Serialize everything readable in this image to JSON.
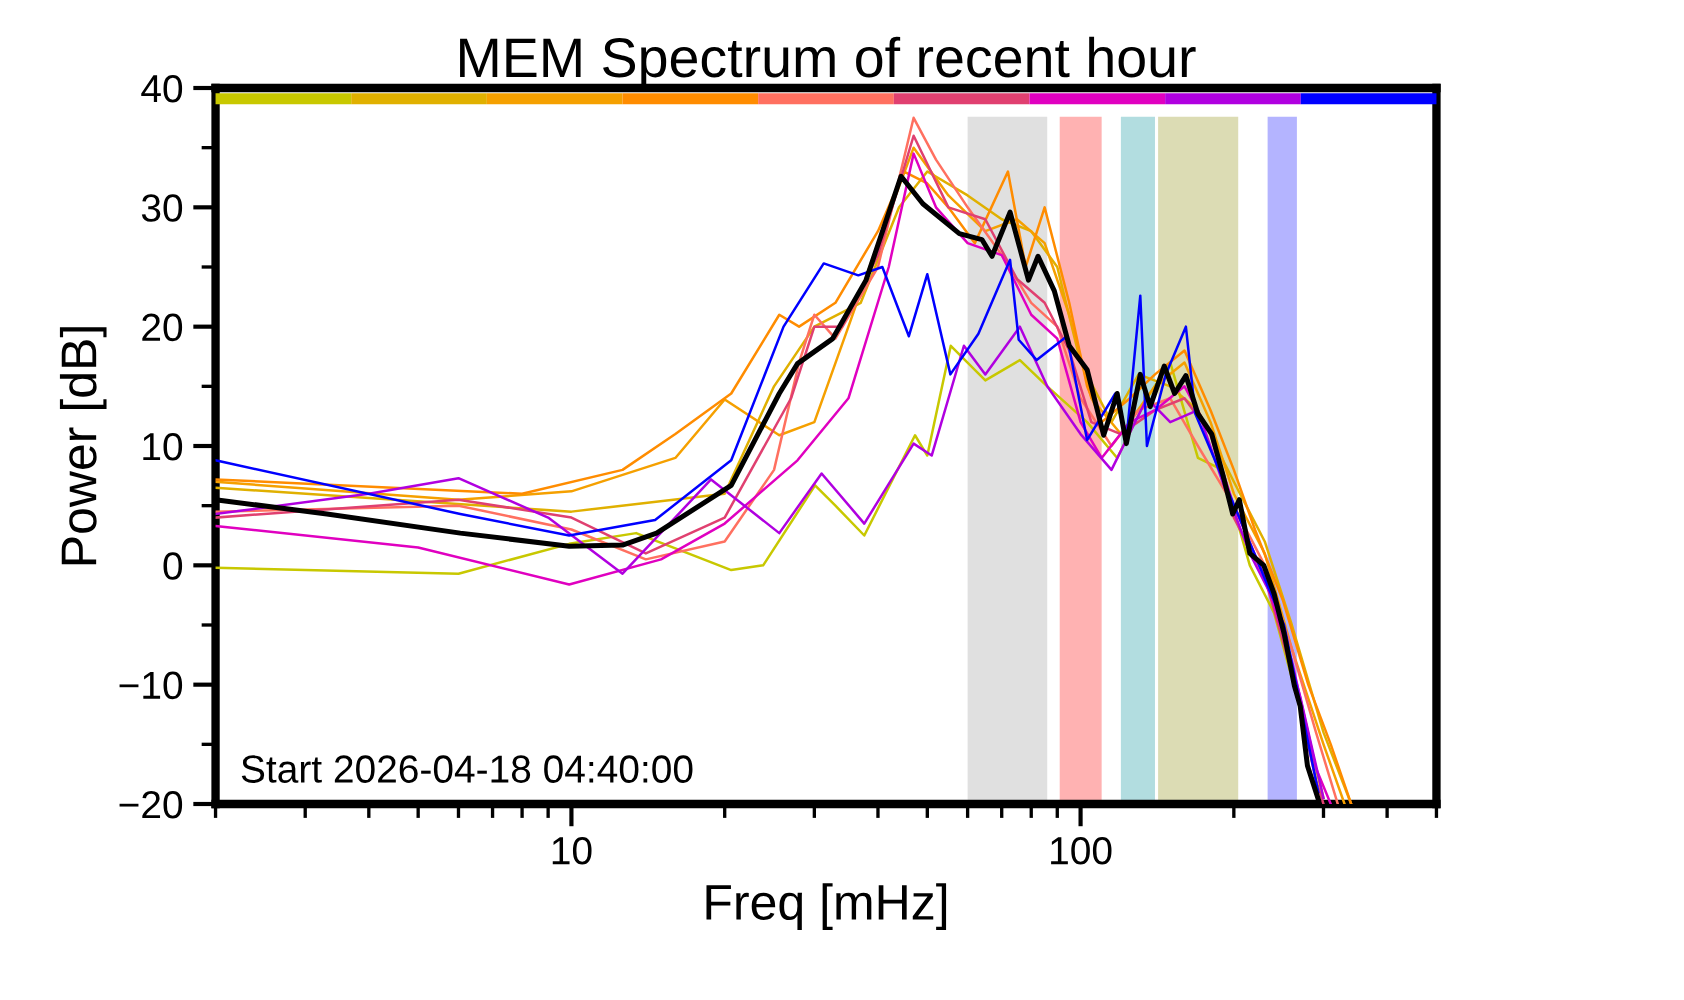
{
  "chart_data": {
    "type": "line",
    "title": "MEM Spectrum of recent hour",
    "xlabel": "Freq [mHz]",
    "ylabel": "Power [dB]",
    "log": "x",
    "grid": false,
    "xlim": [
      2,
      500
    ],
    "ylim": [
      -20,
      40
    ],
    "xticks": [
      {
        "value": 2,
        "label": null
      },
      {
        "value": 3,
        "label": null
      },
      {
        "value": 4,
        "label": null
      },
      {
        "value": 5,
        "label": null
      },
      {
        "value": 6,
        "label": null
      },
      {
        "value": 7,
        "label": null
      },
      {
        "value": 8,
        "label": null
      },
      {
        "value": 9,
        "label": null
      },
      10,
      {
        "value": 20,
        "label": null
      },
      {
        "value": 30,
        "label": null
      },
      {
        "value": 40,
        "label": null
      },
      {
        "value": 50,
        "label": null
      },
      {
        "value": 60,
        "label": null
      },
      {
        "value": 70,
        "label": null
      },
      {
        "value": 80,
        "label": null
      },
      {
        "value": 90,
        "label": null
      },
      100,
      {
        "value": 200,
        "label": null
      },
      {
        "value": 300,
        "label": null
      },
      {
        "value": 400,
        "label": null
      },
      {
        "value": 500,
        "label": null
      }
    ],
    "yticks": [
      -20,
      -10,
      0,
      10,
      20,
      30,
      40,
      {
        "value": -15,
        "label": null
      },
      {
        "value": -5,
        "label": null
      },
      {
        "value": 5,
        "label": null
      },
      {
        "value": 15,
        "label": null
      },
      {
        "value": 25,
        "label": null
      },
      {
        "value": 35,
        "label": null
      }
    ],
    "annotations": [
      "Start 2026-04-18 04:40:00"
    ],
    "bands": [
      {
        "axis": "x",
        "from": 60,
        "to": 86,
        "color": "#e0e0e0"
      },
      {
        "axis": "x",
        "from": 91,
        "to": 110,
        "color": "#ffb2b2"
      },
      {
        "axis": "x",
        "from": 120,
        "to": 140,
        "color": "#b2dde0"
      },
      {
        "axis": "x",
        "from": 142,
        "to": 204,
        "color": "#dcdcb4"
      },
      {
        "axis": "x",
        "from": 233,
        "to": 266,
        "color": "#b4b4ff"
      }
    ],
    "series": [
      {
        "color": "#c8c800",
        "x": [
          2,
          6,
          9.9,
          13.4,
          20.6,
          23.8,
          30.1,
          33,
          37.6,
          47.3,
          50,
          55.6,
          65,
          76,
          86,
          103,
          118,
          135,
          150,
          170,
          190,
          215,
          240,
          270,
          300
        ],
        "values": [
          -0.2,
          -0.7,
          1.8,
          2.7,
          -0.4,
          0,
          6.7,
          5,
          2.5,
          10.9,
          9.2,
          18.4,
          15.5,
          17.2,
          15,
          12,
          9,
          14,
          17,
          9,
          8,
          0,
          -4,
          -12,
          -19.5
        ]
      },
      {
        "color": "#e0b000",
        "x": [
          2,
          10,
          20,
          25,
          30,
          37,
          44,
          50,
          60,
          70,
          80,
          90,
          100,
          115,
          130,
          150,
          170,
          200,
          230,
          260,
          300,
          340
        ],
        "values": [
          6.5,
          4.5,
          6,
          15,
          20,
          22,
          30,
          33,
          31,
          29,
          28,
          25,
          17,
          12,
          16,
          15,
          13,
          7,
          2,
          -5,
          -14,
          -20
        ]
      },
      {
        "color": "#f5a000",
        "x": [
          2,
          6,
          10,
          16,
          20,
          25.6,
          30,
          35,
          40,
          47,
          55,
          65,
          75,
          85,
          95,
          105,
          120,
          140,
          160,
          180,
          200,
          230,
          260,
          300,
          330
        ],
        "values": [
          7,
          5.5,
          6.2,
          9,
          13.9,
          10.9,
          12,
          20,
          27,
          35,
          31,
          28,
          29,
          27,
          21,
          14,
          11,
          15,
          17,
          12,
          6,
          1,
          -7,
          -15,
          -20
        ]
      },
      {
        "color": "#ff8c00",
        "x": [
          2,
          8,
          12.6,
          16,
          20.6,
          25.6,
          28,
          33,
          40,
          45,
          50,
          55,
          62,
          72,
          78,
          85,
          95,
          103,
          110,
          125,
          140,
          160,
          180,
          200,
          220,
          250,
          280,
          310,
          340
        ],
        "values": [
          7.2,
          6,
          8,
          11,
          14.4,
          21,
          20,
          22,
          28,
          33,
          32,
          30,
          27,
          33,
          25,
          30,
          22,
          15,
          12,
          14,
          16,
          18,
          13,
          8,
          3,
          -3,
          -10,
          -15,
          -20
        ]
      },
      {
        "color": "#ff7060",
        "x": [
          2,
          6,
          10,
          14,
          20,
          25,
          28,
          30,
          33,
          40,
          47,
          52,
          60,
          70,
          80,
          90,
          100,
          115,
          130,
          150,
          170,
          200,
          230,
          260,
          290,
          320
        ],
        "values": [
          4.5,
          5,
          3,
          0.5,
          2,
          8,
          17,
          21,
          19,
          25,
          37.5,
          34,
          30,
          26,
          22,
          20,
          14,
          10,
          13,
          14,
          10,
          5,
          0,
          -7,
          -14,
          -20
        ]
      },
      {
        "color": "#e04070",
        "x": [
          2,
          6,
          10,
          14,
          20,
          27,
          30,
          34,
          40,
          47,
          55,
          65,
          75,
          85,
          95,
          105,
          120,
          140,
          160,
          180,
          200,
          230,
          260,
          290,
          300
        ],
        "values": [
          4,
          5.5,
          4,
          1,
          4,
          14,
          20,
          20,
          26,
          36,
          30,
          29,
          24,
          22,
          18,
          12,
          11,
          13,
          14,
          11,
          4,
          -1,
          -9,
          -18,
          -20
        ]
      },
      {
        "color": "#e000c0",
        "x": [
          2,
          5,
          9.9,
          15,
          20,
          27.8,
          35,
          42,
          47,
          52,
          60,
          70,
          80,
          90,
          100,
          110,
          125,
          140,
          160,
          180,
          200,
          230,
          260,
          290,
          310
        ],
        "values": [
          3.3,
          1.5,
          -1.6,
          0.5,
          3.5,
          8.8,
          14,
          25,
          34.5,
          30,
          27,
          26,
          21,
          19,
          12,
          9,
          12,
          13,
          15,
          11,
          5,
          -1,
          -8,
          -17,
          -20
        ]
      },
      {
        "color": "#b000e0",
        "x": [
          2,
          4,
          6,
          9,
          12.6,
          18.8,
          25.6,
          31,
          37.6,
          47,
          51,
          59,
          65,
          76,
          86,
          100,
          115,
          135,
          150,
          170,
          190,
          215,
          240,
          270,
          300
        ],
        "values": [
          4.3,
          6,
          7.3,
          4,
          -0.7,
          7.2,
          2.7,
          7.7,
          3.5,
          10.2,
          9.2,
          18.4,
          16,
          20,
          15,
          11,
          8,
          14,
          12,
          13,
          7,
          1,
          -3,
          -11,
          -19.5
        ]
      },
      {
        "color": "#0000ff",
        "x": [
          2,
          6.05,
          9.9,
          14.6,
          20.6,
          26.1,
          31.3,
          36.6,
          40.8,
          46,
          50,
          55.5,
          63,
          72.7,
          75.6,
          82,
          94,
          103,
          117,
          123,
          131,
          135,
          147,
          161,
          168,
          205,
          251,
          293
        ],
        "values": [
          8.8,
          4.3,
          2.5,
          3.8,
          8.8,
          20,
          25.3,
          24.3,
          25,
          19.2,
          24.4,
          16,
          19.4,
          25.6,
          18.9,
          17.2,
          19.2,
          10.5,
          14.4,
          10.5,
          22.6,
          10,
          16,
          20,
          12.7,
          4,
          -5,
          -19
        ]
      },
      {
        "color": "#000000",
        "x": [
          2,
          3.31,
          6.05,
          9.9,
          12.6,
          14.7,
          20.6,
          25.6,
          27.8,
          32.6,
          37.9,
          44.4,
          49,
          57.8,
          64,
          67,
          72.7,
          79,
          82.5,
          88.8,
          95,
          103,
          111,
          118,
          123,
          131,
          137,
          146,
          153,
          161,
          170,
          181,
          190,
          199,
          205,
          215,
          229,
          240,
          251,
          263,
          270,
          279,
          293
        ],
        "values": [
          5.5,
          4.3,
          2.7,
          1.6,
          1.7,
          2.7,
          6.7,
          14.4,
          16.9,
          19,
          23.9,
          32.6,
          30.3,
          27.8,
          27.3,
          25.9,
          29.6,
          23.9,
          25.9,
          23,
          18.4,
          16.4,
          10.9,
          14.4,
          10.2,
          16,
          13.3,
          16.7,
          14.4,
          15.9,
          12.7,
          11,
          7.7,
          4.3,
          5.5,
          1,
          0,
          -2.4,
          -5.7,
          -10.1,
          -11.8,
          -16.8,
          -19.6
        ]
      }
    ]
  }
}
